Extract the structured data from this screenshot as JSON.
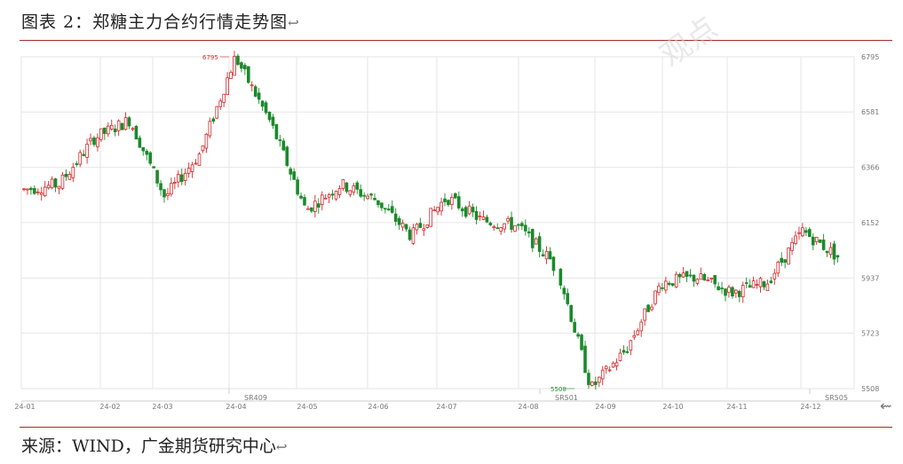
{
  "header": {
    "title": "图表 2：郑糖主力合约行情走势图",
    "para_mark": "↩"
  },
  "footer": {
    "source": "来源：WIND，广金期货研究中心",
    "para_mark": "↩"
  },
  "watermark": {
    "text": "观点"
  },
  "colors": {
    "up": "#d62728",
    "down": "#1a8a2a",
    "grid": "#e6e6e6",
    "axis_text": "#777777",
    "rule": "#a52a2a"
  },
  "chart_data": {
    "type": "candlestick",
    "title": "",
    "ylim": [
      5508,
      6795
    ],
    "y_ticks": [
      5508,
      5723,
      5937,
      6152,
      6366,
      6581,
      6795
    ],
    "x_ticks": [
      "24-01",
      "24-02",
      "24-03",
      "24-04",
      "24-05",
      "24-06",
      "24-07",
      "24-08",
      "24-09",
      "24-10",
      "24-11",
      "24-12"
    ],
    "contract_labels": [
      "SR409",
      "SR501",
      "SR505"
    ],
    "max_annotation": "6795",
    "min_annotation": "5508",
    "grid": true,
    "series": [
      {
        "x": [
          "24-01",
          "24-01",
          "24-02",
          "24-02",
          "24-03",
          "24-03",
          "24-04",
          "24-04",
          "24-05",
          "24-05",
          "24-06",
          "24-06",
          "24-07",
          "24-07",
          "24-08",
          "24-08",
          "24-09",
          "24-09",
          "24-10",
          "24-10",
          "24-11",
          "24-11",
          "24-12",
          "24-12"
        ],
        "values": [
          6280,
          6300,
          6480,
          6550,
          6250,
          6420,
          6795,
          6540,
          6200,
          6300,
          6240,
          6100,
          6250,
          6160,
          6140,
          6000,
          5508,
          5660,
          5920,
          5940,
          5880,
          5920,
          6120,
          6020
        ]
      }
    ]
  }
}
